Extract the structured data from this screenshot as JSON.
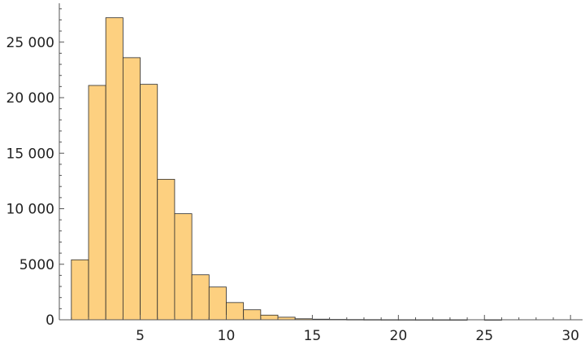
{
  "chart_data": {
    "type": "bar",
    "title": "",
    "xlabel": "",
    "ylabel": "",
    "bin_width": 1,
    "xlim": [
      0.3,
      30.7
    ],
    "ylim": [
      0,
      28500
    ],
    "grid": false,
    "legend": "none",
    "colors": {
      "bar_fill": "#fdd080",
      "bar_stroke": "#2b2b2b",
      "axis": "#555555",
      "text": "#222222"
    },
    "x_ticks": [
      {
        "value": 5,
        "label": "5"
      },
      {
        "value": 10,
        "label": "10"
      },
      {
        "value": 15,
        "label": "15"
      },
      {
        "value": 20,
        "label": "20"
      },
      {
        "value": 25,
        "label": "25"
      },
      {
        "value": 30,
        "label": "30"
      }
    ],
    "y_ticks": [
      {
        "value": 0,
        "label": "0"
      },
      {
        "value": 5000,
        "label": "5000"
      },
      {
        "value": 10000,
        "label": "10 000"
      },
      {
        "value": 15000,
        "label": "15 000"
      },
      {
        "value": 20000,
        "label": "20 000"
      },
      {
        "value": 25000,
        "label": "25 000"
      }
    ],
    "bins": [
      {
        "start": 1,
        "end": 2,
        "value": 5400
      },
      {
        "start": 2,
        "end": 3,
        "value": 21100
      },
      {
        "start": 3,
        "end": 4,
        "value": 27200
      },
      {
        "start": 4,
        "end": 5,
        "value": 23600
      },
      {
        "start": 5,
        "end": 6,
        "value": 21200
      },
      {
        "start": 6,
        "end": 7,
        "value": 12650
      },
      {
        "start": 7,
        "end": 8,
        "value": 9550
      },
      {
        "start": 8,
        "end": 9,
        "value": 4050
      },
      {
        "start": 9,
        "end": 10,
        "value": 2950
      },
      {
        "start": 10,
        "end": 11,
        "value": 1550
      },
      {
        "start": 11,
        "end": 12,
        "value": 900
      },
      {
        "start": 12,
        "end": 13,
        "value": 420
      },
      {
        "start": 13,
        "end": 14,
        "value": 230
      },
      {
        "start": 14,
        "end": 15,
        "value": 90
      },
      {
        "start": 15,
        "end": 16,
        "value": 55
      },
      {
        "start": 16,
        "end": 17,
        "value": 35
      },
      {
        "start": 17,
        "end": 18,
        "value": 25
      },
      {
        "start": 18,
        "end": 19,
        "value": 18
      },
      {
        "start": 19,
        "end": 20,
        "value": 12
      },
      {
        "start": 20,
        "end": 21,
        "value": 10
      },
      {
        "start": 21,
        "end": 22,
        "value": 7
      },
      {
        "start": 22,
        "end": 23,
        "value": 5
      },
      {
        "start": 23,
        "end": 24,
        "value": 4
      },
      {
        "start": 25,
        "end": 26,
        "value": 3
      }
    ]
  }
}
